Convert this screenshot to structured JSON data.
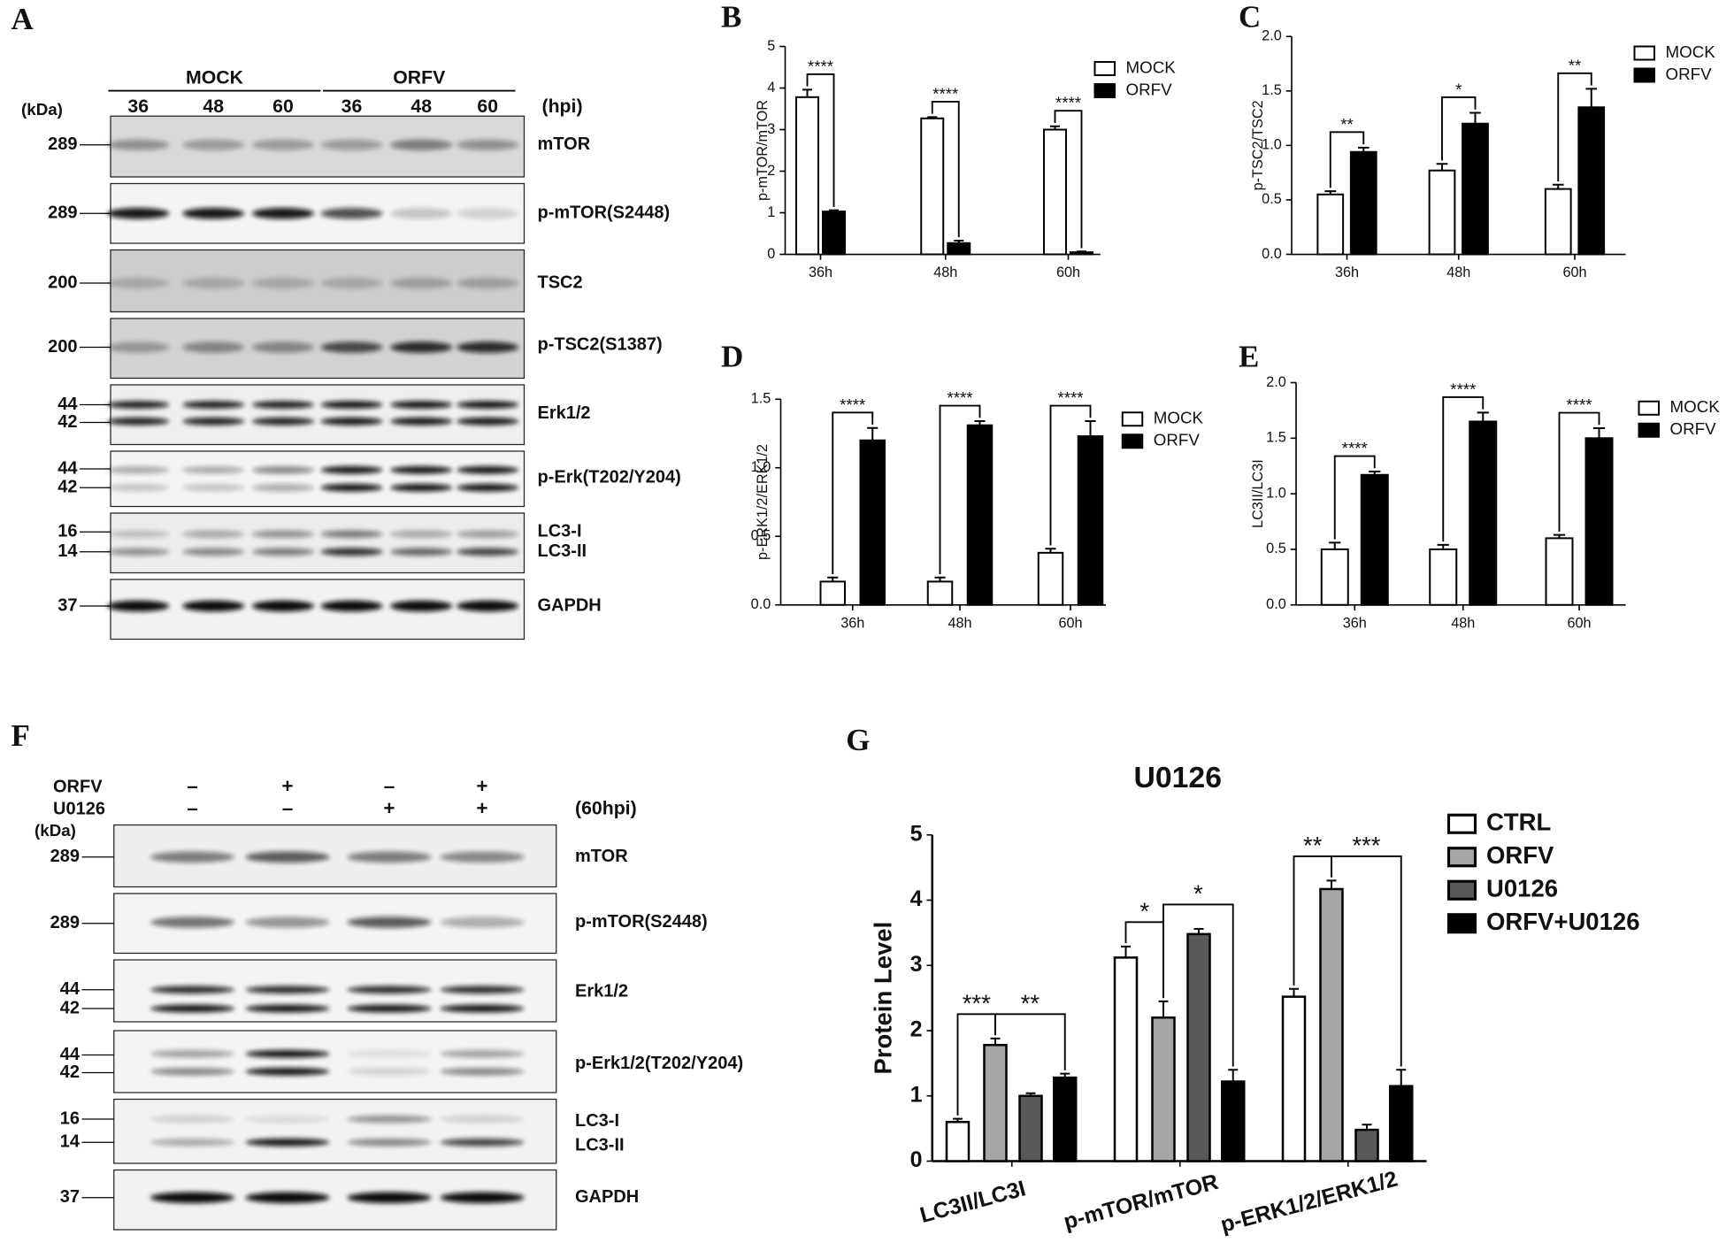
{
  "blots": [
    {
      "panel": "A",
      "groups": [
        "MOCK",
        "ORFV"
      ],
      "lanes": [
        "36",
        "48",
        "60",
        "36",
        "48",
        "60"
      ],
      "unit": "(hpi)",
      "kda": "(kDa)",
      "rows": [
        {
          "markers": [
            "289"
          ],
          "labels": [
            "mTOR"
          ]
        },
        {
          "markers": [
            "289"
          ],
          "labels": [
            "p-mTOR(S2448)"
          ]
        },
        {
          "markers": [
            "200"
          ],
          "labels": [
            "TSC2"
          ]
        },
        {
          "markers": [
            "200"
          ],
          "labels": [
            "p-TSC2(S1387)"
          ]
        },
        {
          "markers": [
            "44",
            "42"
          ],
          "labels": [
            "Erk1/2"
          ]
        },
        {
          "markers": [
            "44",
            "42"
          ],
          "labels": [
            "p-Erk(T202/Y204)"
          ]
        },
        {
          "markers": [
            "16",
            "14"
          ],
          "labels": [
            "LC3-I",
            "LC3-II"
          ]
        },
        {
          "markers": [
            "37"
          ],
          "labels": [
            "GAPDH"
          ]
        }
      ]
    },
    {
      "panel": "F",
      "conditions": [
        {
          "name": "ORFV",
          "signs": [
            "–",
            "+",
            "–",
            "+"
          ]
        },
        {
          "name": "U0126",
          "signs": [
            "–",
            "–",
            "+",
            "+"
          ]
        }
      ],
      "unit": "(60hpi)",
      "kda": "(kDa)",
      "rows": [
        {
          "markers": [
            "289"
          ],
          "labels": [
            "mTOR"
          ]
        },
        {
          "markers": [
            "289"
          ],
          "labels": [
            "p-mTOR(S2448)"
          ]
        },
        {
          "markers": [
            "44",
            "42"
          ],
          "labels": [
            "Erk1/2"
          ]
        },
        {
          "markers": [
            "44",
            "42"
          ],
          "labels": [
            "p-Erk1/2(T202/Y204)"
          ]
        },
        {
          "markers": [
            "16",
            "14"
          ],
          "labels": [
            "LC3-I",
            "LC3-II"
          ]
        },
        {
          "markers": [
            "37"
          ],
          "labels": [
            "GAPDH"
          ]
        }
      ]
    }
  ],
  "chart_data": [
    {
      "type": "bar",
      "panel": "B",
      "ylabel": "p-mTOR/mTOR",
      "categories": [
        "36h",
        "48h",
        "60h"
      ],
      "series": [
        {
          "name": "MOCK",
          "color": "#ffffff",
          "values": [
            3.78,
            3.27,
            3.0
          ],
          "errors": [
            0.18,
            0.03,
            0.08
          ]
        },
        {
          "name": "ORFV",
          "color": "#000000",
          "values": [
            1.03,
            0.27,
            0.05
          ],
          "errors": [
            0.03,
            0.06,
            0.02
          ]
        }
      ],
      "ylim": [
        0,
        5
      ],
      "yticks": [
        0,
        1,
        2,
        3,
        4,
        5
      ],
      "significance": [
        "****",
        "****",
        "****"
      ]
    },
    {
      "type": "bar",
      "panel": "C",
      "ylabel": "p-TSC2/TSC2",
      "categories": [
        "36h",
        "48h",
        "60h"
      ],
      "series": [
        {
          "name": "MOCK",
          "color": "#ffffff",
          "values": [
            0.55,
            0.77,
            0.6
          ],
          "errors": [
            0.03,
            0.06,
            0.04
          ]
        },
        {
          "name": "ORFV",
          "color": "#000000",
          "values": [
            0.94,
            1.2,
            1.35
          ],
          "errors": [
            0.04,
            0.1,
            0.17
          ]
        }
      ],
      "ylim": [
        0,
        2
      ],
      "yticks": [
        {
          "value": 0,
          "label": "0.0"
        },
        {
          "value": 0.5,
          "label": "0.5"
        },
        {
          "value": 1,
          "label": "1.0"
        },
        {
          "value": 1.5,
          "label": "1.5"
        },
        {
          "value": 2,
          "label": "2.0"
        }
      ],
      "significance": [
        "**",
        "*",
        "**"
      ]
    },
    {
      "type": "bar",
      "panel": "D",
      "ylabel": "p-ERK1/2/ERK1/2",
      "categories": [
        "36h",
        "48h",
        "60h"
      ],
      "series": [
        {
          "name": "MOCK",
          "color": "#ffffff",
          "values": [
            0.17,
            0.17,
            0.38
          ],
          "errors": [
            0.03,
            0.03,
            0.03
          ]
        },
        {
          "name": "ORFV",
          "color": "#000000",
          "values": [
            1.2,
            1.31,
            1.23
          ],
          "errors": [
            0.09,
            0.03,
            0.11
          ]
        }
      ],
      "ylim": [
        0,
        1.5
      ],
      "yticks": [
        {
          "value": 0,
          "label": "0.0"
        },
        {
          "value": 0.5,
          "label": "0.5"
        },
        {
          "value": 1,
          "label": "1.0"
        },
        {
          "value": 1.5,
          "label": "1.5"
        }
      ],
      "significance": [
        "****",
        "****",
        "****"
      ]
    },
    {
      "type": "bar",
      "panel": "E",
      "ylabel": "LC3II/LC3I",
      "categories": [
        "36h",
        "48h",
        "60h"
      ],
      "series": [
        {
          "name": "MOCK",
          "color": "#ffffff",
          "values": [
            0.5,
            0.5,
            0.6
          ],
          "errors": [
            0.06,
            0.04,
            0.03
          ]
        },
        {
          "name": "ORFV",
          "color": "#000000",
          "values": [
            1.17,
            1.65,
            1.5
          ],
          "errors": [
            0.03,
            0.08,
            0.09
          ]
        }
      ],
      "ylim": [
        0,
        2
      ],
      "yticks": [
        {
          "value": 0,
          "label": "0.0"
        },
        {
          "value": 0.5,
          "label": "0.5"
        },
        {
          "value": 1,
          "label": "1.0"
        },
        {
          "value": 1.5,
          "label": "1.5"
        },
        {
          "value": 2,
          "label": "2.0"
        }
      ],
      "significance": [
        "****",
        "****",
        "****"
      ]
    },
    {
      "type": "bar",
      "panel": "G",
      "title": "U0126",
      "ylabel": "Protein Level",
      "categories": [
        "LC3II/LC3I",
        "p-mTOR/mTOR",
        "p-ERK1/2/ERK1/2"
      ],
      "series": [
        {
          "name": "CTRL",
          "color": "#ffffff",
          "values": [
            0.6,
            3.12,
            2.52
          ],
          "errors": [
            0.05,
            0.17,
            0.12
          ]
        },
        {
          "name": "ORFV",
          "color": "#a6a6a6",
          "values": [
            1.78,
            2.2,
            4.17
          ],
          "errors": [
            0.1,
            0.25,
            0.13
          ]
        },
        {
          "name": "U0126",
          "color": "#595959",
          "values": [
            1.0,
            3.48,
            0.48
          ],
          "errors": [
            0.04,
            0.08,
            0.08
          ]
        },
        {
          "name": "ORFV+U0126",
          "color": "#000000",
          "values": [
            1.28,
            1.22,
            1.15
          ],
          "errors": [
            0.06,
            0.18,
            0.25
          ]
        }
      ],
      "ylim": [
        0,
        5
      ],
      "yticks": [
        0,
        1,
        2,
        3,
        4,
        5
      ],
      "significance": [
        [
          "***",
          "**"
        ],
        [
          "*",
          "*"
        ],
        [
          "**",
          "***"
        ]
      ]
    }
  ]
}
